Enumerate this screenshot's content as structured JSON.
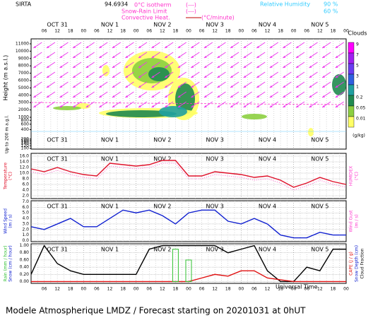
{
  "header": {
    "station": "SIRTA",
    "coords": "94.6934",
    "isotherm": "0°C isotherm",
    "isotherm_key": "(---)",
    "snow_limit": "Snow-Rain Limit",
    "snow_key": "(---)",
    "conv_heat": "Convective Heat.",
    "conv_unit": "(°C/minute)",
    "rh": "Relative Humidity",
    "rh90": "90 %",
    "rh60": "60 %"
  },
  "days": [
    "OCT 31",
    "NOV 1",
    "NOV 2",
    "NOV 3",
    "NOV 4",
    "NOV 5"
  ],
  "hour_labels": [
    "06",
    "12",
    "18",
    "00"
  ],
  "xlabel": "Universal Time",
  "footer": "Modele Atmospherique LMDZ / Forecast starting on 20201031 at 0hUT",
  "chart_data": [
    {
      "type": "contour",
      "ylabel": "Height (m a.s.l.)",
      "ylabel2": "Up to 200 m a.g.l.",
      "yticks": [
        100,
        120,
        140,
        160,
        180,
        200,
        400,
        600,
        800,
        1000,
        2000,
        3000,
        4000,
        5000,
        6000,
        7000,
        8000,
        9000,
        10000,
        11000
      ],
      "colorbar": {
        "title": "Clouds",
        "levels": [
          9,
          7,
          5,
          3,
          1,
          0.2,
          0.05,
          0.01
        ],
        "colors": [
          "#ff00ff",
          "#a020f0",
          "#6a3cf0",
          "#3060e0",
          "#20a0a0",
          "#208a50",
          "#8ccf40",
          "#ffff66"
        ],
        "unit": "(g/kg)"
      }
    },
    {
      "type": "line",
      "ylabel": "Temperature",
      "yunit": "(°C)",
      "ylabel_r": "HUMIDEX",
      "yunit_r": "(°C)",
      "ylim": [
        1,
        17
      ],
      "yticks": [
        {
          "value": 16,
          "label": "16.0"
        },
        {
          "value": 14,
          "label": "14.0"
        },
        {
          "value": 12,
          "label": "12.0"
        },
        {
          "value": 10,
          "label": "10.0"
        },
        {
          "value": 8,
          "label": "8.0"
        },
        {
          "value": 6,
          "label": "6.0"
        },
        {
          "value": 4,
          "label": "4.0"
        },
        {
          "value": 2,
          "label": "2.0"
        }
      ],
      "x": [
        0,
        6,
        12,
        18,
        24,
        30,
        36,
        42,
        48,
        54,
        60,
        66,
        72,
        78,
        84,
        90,
        96,
        102,
        108,
        114,
        120,
        126,
        132,
        138,
        144
      ],
      "series": [
        {
          "name": "Temperature",
          "color": "#e0102a",
          "values": [
            11.5,
            10.5,
            12,
            10.5,
            9.5,
            9,
            13.5,
            13,
            12.5,
            13,
            14.5,
            14.5,
            9,
            9,
            10.5,
            10,
            9.5,
            8.5,
            9,
            7.5,
            5,
            6.5,
            8.5,
            7,
            6
          ]
        },
        {
          "name": "HUMIDEX",
          "color": "#ff66cc",
          "style": "dotted",
          "values": [
            10.5,
            9.5,
            11,
            9.5,
            8.5,
            8,
            12.5,
            12,
            11.5,
            12,
            13.5,
            13.5,
            8,
            8,
            9.5,
            9,
            8.5,
            7.5,
            8,
            6.5,
            4,
            5.5,
            7.5,
            6,
            5
          ]
        }
      ]
    },
    {
      "type": "line",
      "ylabel": "Wind Speed",
      "yunit": "(m / s)",
      "ylabel_r": "Wind Gust",
      "yunit_r": "(m / s)",
      "ylim": [
        -0.2,
        7.2
      ],
      "yticks": [
        {
          "value": 7,
          "label": "7.0"
        },
        {
          "value": 6,
          "label": "6.0"
        },
        {
          "value": 5,
          "label": "5.0"
        },
        {
          "value": 4,
          "label": "4.0"
        },
        {
          "value": 3,
          "label": "3.0"
        },
        {
          "value": 2,
          "label": "2.0"
        },
        {
          "value": 1,
          "label": "1.0"
        },
        {
          "value": 0,
          "label": "0.0"
        }
      ],
      "x": [
        0,
        6,
        12,
        18,
        24,
        30,
        36,
        42,
        48,
        54,
        60,
        66,
        72,
        78,
        84,
        90,
        96,
        102,
        108,
        114,
        120,
        126,
        132,
        138,
        144
      ],
      "series": [
        {
          "name": "Wind Speed",
          "color": "#1020d0",
          "values": [
            2.5,
            2,
            3,
            4,
            2.5,
            2.5,
            4,
            5.5,
            5,
            5.5,
            4.5,
            3,
            5,
            5.5,
            5.5,
            3.5,
            3,
            4,
            3,
            1,
            0.5,
            0.5,
            1.5,
            1,
            1
          ]
        }
      ]
    },
    {
      "type": "line",
      "ylabel": "Rain (mm / hour)",
      "ylabel_b": "Snow (cm / hour)",
      "ylabel_r": "CAPE (J / g)",
      "ylabel_r2": "Snow Depth (cm)",
      "ylabel_r3": "Cloud Fraction",
      "ylim": [
        -0.05,
        1.05
      ],
      "yticks": [
        {
          "value": 1,
          "label": "1.00"
        },
        {
          "value": 0.8,
          "label": "0.80"
        },
        {
          "value": 0.6,
          "label": "0.60"
        },
        {
          "value": 0.4,
          "label": "0.40"
        },
        {
          "value": 0.2,
          "label": "0.20"
        },
        {
          "value": 0,
          "label": "0.00"
        }
      ],
      "x": [
        0,
        6,
        12,
        18,
        24,
        30,
        36,
        42,
        48,
        54,
        60,
        66,
        72,
        78,
        84,
        90,
        96,
        102,
        108,
        114,
        120,
        126,
        132,
        138,
        144
      ],
      "series": [
        {
          "name": "Cloud Fraction",
          "color": "#000000",
          "values": [
            0.2,
            1,
            0.5,
            0.3,
            0.2,
            0.2,
            0.2,
            0.2,
            0.2,
            0.9,
            1,
            1,
            1,
            1,
            1,
            0.8,
            0.9,
            1,
            0.3,
            0,
            0,
            0.4,
            0.3,
            0.9,
            0.9
          ]
        },
        {
          "name": "CAPE",
          "color": "#e01010",
          "values": [
            0,
            0,
            0,
            0,
            0,
            0,
            0,
            0,
            0,
            0,
            0,
            0,
            0,
            0.1,
            0.2,
            0.15,
            0.3,
            0.3,
            0.1,
            0.05,
            0,
            0,
            0,
            0,
            0
          ]
        },
        {
          "name": "Rain",
          "color": "#30c030",
          "style": "bar",
          "values": [
            null,
            null,
            null,
            null,
            null,
            null,
            null,
            null,
            null,
            null,
            null,
            0.9,
            0.6,
            null,
            null,
            null,
            null,
            null,
            null,
            null,
            null,
            null,
            null,
            null,
            null
          ]
        }
      ]
    }
  ]
}
